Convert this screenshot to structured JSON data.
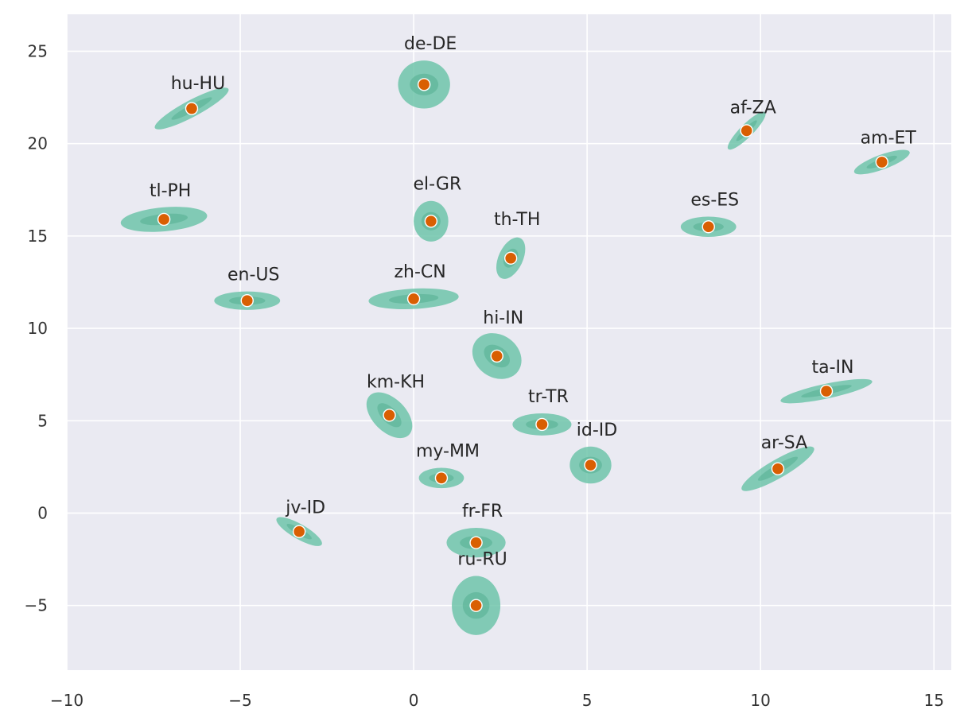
{
  "chart_data": {
    "type": "scatter",
    "title": "",
    "xlabel": "",
    "ylabel": "",
    "xlim": [
      -10,
      15.5
    ],
    "ylim": [
      -8.5,
      27
    ],
    "xticks": [
      -10,
      -5,
      0,
      5,
      10,
      15
    ],
    "xtick_labels": [
      "−10",
      "−5",
      "0",
      "5",
      "10",
      "15"
    ],
    "yticks": [
      -5,
      0,
      5,
      10,
      15,
      20,
      25
    ],
    "ytick_labels": [
      "−5",
      "0",
      "5",
      "10",
      "15",
      "20",
      "25"
    ],
    "grid": true,
    "colors": {
      "background": "#eaeaf2",
      "grid": "#ffffff",
      "cluster_fill": "#66c2a5",
      "center_point": "#d95f02"
    },
    "clusters": [
      {
        "label": "de-DE",
        "x": 0.3,
        "y": 23.2,
        "rx": 0.75,
        "ry": 1.3,
        "angle": 0
      },
      {
        "label": "hu-HU",
        "x": -6.4,
        "y": 21.9,
        "rx": 1.2,
        "ry": 0.45,
        "angle": -28
      },
      {
        "label": "af-ZA",
        "x": 9.6,
        "y": 20.7,
        "rx": 0.75,
        "ry": 0.35,
        "angle": -45
      },
      {
        "label": "am-ET",
        "x": 13.5,
        "y": 19.0,
        "rx": 0.85,
        "ry": 0.4,
        "angle": -20
      },
      {
        "label": "tl-PH",
        "x": -7.2,
        "y": 15.9,
        "rx": 1.25,
        "ry": 0.65,
        "angle": -5
      },
      {
        "label": "el-GR",
        "x": 0.5,
        "y": 15.8,
        "rx": 0.5,
        "ry": 1.1,
        "angle": 0
      },
      {
        "label": "es-ES",
        "x": 8.5,
        "y": 15.5,
        "rx": 0.8,
        "ry": 0.55,
        "angle": 0
      },
      {
        "label": "th-TH",
        "x": 2.8,
        "y": 13.8,
        "rx": 0.35,
        "ry": 1.2,
        "angle": 25
      },
      {
        "label": "en-US",
        "x": -4.8,
        "y": 11.5,
        "rx": 0.95,
        "ry": 0.5,
        "angle": 0
      },
      {
        "label": "zh-CN",
        "x": 0.0,
        "y": 11.6,
        "rx": 1.3,
        "ry": 0.55,
        "angle": -3
      },
      {
        "label": "hi-IN",
        "x": 2.4,
        "y": 8.5,
        "rx": 0.75,
        "ry": 1.15,
        "angle": 35
      },
      {
        "label": "ta-IN",
        "x": 11.9,
        "y": 6.6,
        "rx": 1.35,
        "ry": 0.4,
        "angle": -12
      },
      {
        "label": "km-KH",
        "x": -0.7,
        "y": 5.3,
        "rx": 0.8,
        "ry": 0.9,
        "angle": 45
      },
      {
        "label": "tr-TR",
        "x": 3.7,
        "y": 4.8,
        "rx": 0.85,
        "ry": 0.6,
        "angle": 0
      },
      {
        "label": "id-ID",
        "x": 5.1,
        "y": 2.6,
        "rx": 0.6,
        "ry": 1.0,
        "angle": 0
      },
      {
        "label": "ar-SA",
        "x": 10.5,
        "y": 2.4,
        "rx": 1.2,
        "ry": 0.5,
        "angle": -30
      },
      {
        "label": "my-MM",
        "x": 0.8,
        "y": 1.9,
        "rx": 0.65,
        "ry": 0.55,
        "angle": 0
      },
      {
        "label": "jv-ID",
        "x": -3.3,
        "y": -1.0,
        "rx": 0.75,
        "ry": 0.4,
        "angle": 30
      },
      {
        "label": "fr-FR",
        "x": 1.8,
        "y": -1.6,
        "rx": 0.85,
        "ry": 0.8,
        "angle": 0
      },
      {
        "label": "ru-RU",
        "x": 1.8,
        "y": -5.0,
        "rx": 0.7,
        "ry": 1.6,
        "angle": 0
      }
    ]
  }
}
